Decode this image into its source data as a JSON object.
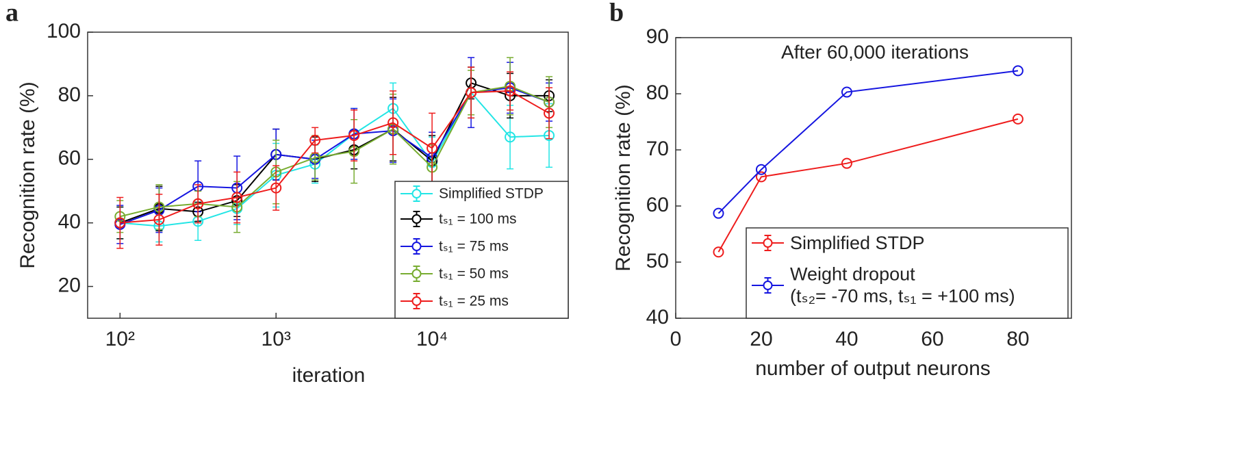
{
  "chart_data": [
    {
      "type": "line",
      "panel_label": "a",
      "xlabel": "iteration",
      "ylabel": "Recognition rate (%)",
      "xscale": "log",
      "x": [
        100,
        178,
        316,
        562,
        1000,
        1778,
        3162,
        5623,
        10000,
        17783,
        31623,
        56234
      ],
      "xlim": [
        62,
        74600
      ],
      "xticks": [
        {
          "value": 100,
          "label": "10²"
        },
        {
          "value": 1000,
          "label": "10³"
        },
        {
          "value": 10000,
          "label": "10⁴"
        }
      ],
      "ylim": [
        10,
        100
      ],
      "yticks": [
        20,
        40,
        60,
        80,
        100
      ],
      "legend": "lower right",
      "series": [
        {
          "name": "Simplified STDP",
          "color": "#22e5e5",
          "values": [
            40,
            39,
            40.5,
            44.5,
            55,
            58.5,
            68,
            76,
            59,
            81,
            67,
            67.5
          ],
          "errors": [
            5,
            5,
            6,
            5,
            10,
            6,
            8,
            8,
            8,
            8,
            10,
            10
          ]
        },
        {
          "name": "tₛ₁ = 100 ms",
          "color": "#000000",
          "values": [
            40,
            44.5,
            43.5,
            47,
            61.5,
            60,
            63,
            69.5,
            59.5,
            84,
            80,
            80
          ],
          "errors": [
            5,
            7,
            3,
            5,
            8,
            7,
            6,
            10,
            8,
            5,
            7,
            5
          ]
        },
        {
          "name": "tₛ₁ = 75 ms",
          "color": "#1515e0",
          "values": [
            39.5,
            44,
            51.5,
            51,
            61.5,
            60,
            68,
            69,
            60.5,
            81,
            82.5,
            78
          ],
          "errors": [
            6,
            7,
            8,
            10,
            8,
            6,
            8,
            10,
            8,
            11,
            8,
            6
          ]
        },
        {
          "name": "tₛ₁ = 50 ms",
          "color": "#77ac30",
          "values": [
            42,
            45,
            46,
            45,
            56,
            60.5,
            62.5,
            69.5,
            57.5,
            81,
            83,
            78
          ],
          "errors": [
            5,
            7,
            4,
            8,
            10,
            7,
            10,
            11,
            7,
            7,
            9,
            8
          ]
        },
        {
          "name": "tₛ₁ = 25 ms",
          "color": "#ee1c1c",
          "values": [
            40,
            41,
            46,
            48,
            51,
            66,
            67.5,
            71.5,
            63.5,
            81,
            81.5,
            74.5
          ],
          "errors": [
            8,
            8,
            6,
            8,
            7,
            4,
            8,
            10,
            11,
            8,
            6,
            8
          ]
        }
      ]
    },
    {
      "type": "line",
      "panel_label": "b",
      "annotation": "After 60,000 iterations",
      "xlabel": "number of output neurons",
      "ylabel": "Recognition rate (%)",
      "x": [
        10,
        20,
        40,
        80
      ],
      "xlim": [
        0,
        92.5
      ],
      "xticks": [
        0,
        20,
        40,
        60,
        80
      ],
      "ylim": [
        40,
        90
      ],
      "yticks": [
        40,
        50,
        60,
        70,
        80,
        90
      ],
      "legend": "lower right",
      "series": [
        {
          "name": "Simplified STDP",
          "color": "#ee1c1c",
          "values": [
            51.8,
            65.2,
            67.6,
            75.5
          ]
        },
        {
          "name": "Weight dropout\n(tₛ₂= -70 ms, tₛ₁ = +100 ms)",
          "color": "#1515e0",
          "values": [
            58.7,
            66.5,
            80.3,
            84.1
          ]
        }
      ]
    }
  ]
}
